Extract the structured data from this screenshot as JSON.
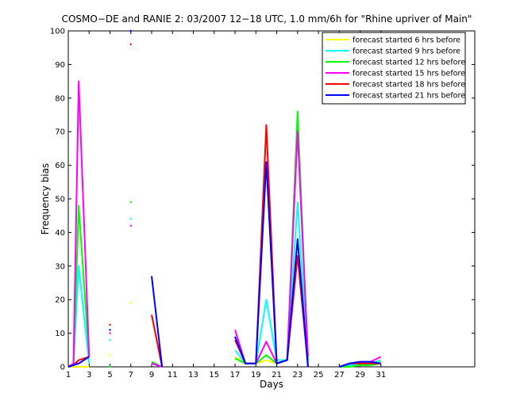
{
  "chart_data": {
    "type": "line",
    "title": "COSMO−DE and RANIE 2: 03/2007 12−18 UTC, 1.0 mm/6h for \"Rhine upriver of Main\"",
    "xlabel": "Days",
    "ylabel": "Frequency bias",
    "xlim": [
      1,
      40
    ],
    "ylim": [
      0,
      100
    ],
    "x_ticks": [
      1,
      3,
      5,
      7,
      9,
      11,
      13,
      15,
      17,
      19,
      21,
      23,
      25,
      27,
      29,
      31
    ],
    "y_ticks": [
      0,
      10,
      20,
      30,
      40,
      50,
      60,
      70,
      80,
      90,
      100
    ],
    "grid": false,
    "legend_position": "top-right",
    "series": [
      {
        "name": "forecast started  6 hrs before",
        "color": "#ffff00",
        "points": [
          [
            1,
            0
          ],
          [
            1.5,
            0
          ],
          [
            2,
            0
          ],
          [
            3,
            0
          ],
          [
            5,
            3.5
          ],
          [
            7,
            19
          ],
          [
            17,
            3
          ],
          [
            18,
            1
          ],
          [
            19,
            1
          ],
          [
            20,
            2
          ],
          [
            21,
            1
          ],
          [
            22,
            2
          ],
          [
            23,
            35
          ],
          [
            24,
            3
          ],
          [
            27,
            0
          ],
          [
            28,
            0.5
          ],
          [
            29,
            1
          ],
          [
            30,
            1
          ],
          [
            31,
            1.5
          ]
        ],
        "gaps_before": [
          4,
          5,
          6
        ],
        "isolated": [
          4,
          5
        ]
      },
      {
        "name": "forecast started  9 hrs before",
        "color": "#00ffff",
        "points": [
          [
            1,
            0
          ],
          [
            1.5,
            1
          ],
          [
            2,
            30
          ],
          [
            3,
            1
          ],
          [
            5,
            8
          ],
          [
            7,
            44
          ],
          [
            9,
            1
          ],
          [
            10,
            0
          ],
          [
            17,
            5
          ],
          [
            18,
            1
          ],
          [
            19,
            1
          ],
          [
            20,
            20
          ],
          [
            21,
            2
          ],
          [
            22,
            2
          ],
          [
            23,
            49
          ],
          [
            24,
            1
          ],
          [
            27,
            0
          ],
          [
            28,
            0.5
          ],
          [
            29,
            1
          ],
          [
            30,
            1
          ],
          [
            31,
            2
          ]
        ],
        "gaps_before": [
          4,
          5,
          6,
          8
        ],
        "isolated": [
          4,
          5
        ]
      },
      {
        "name": "forecast started 12 hrs before",
        "color": "#00ff00",
        "points": [
          [
            1,
            0
          ],
          [
            1.5,
            1
          ],
          [
            2,
            48
          ],
          [
            3,
            3
          ],
          [
            5,
            0
          ],
          [
            7,
            49
          ],
          [
            9,
            1.5
          ],
          [
            10,
            0
          ],
          [
            17,
            2.5
          ],
          [
            18,
            1
          ],
          [
            19,
            1
          ],
          [
            20,
            3.5
          ],
          [
            21,
            1
          ],
          [
            22,
            2
          ],
          [
            23,
            76
          ],
          [
            24,
            2
          ],
          [
            27,
            0
          ],
          [
            28,
            0
          ],
          [
            29,
            0.5
          ],
          [
            30,
            0.5
          ],
          [
            31,
            1
          ]
        ],
        "gaps_before": [
          4,
          5,
          6,
          8
        ],
        "isolated": [
          5
        ]
      },
      {
        "name": "forecast started 15 hrs before",
        "color": "#ff00ff",
        "points": [
          [
            1,
            0
          ],
          [
            1.5,
            1
          ],
          [
            2,
            85
          ],
          [
            3,
            3
          ],
          [
            5,
            10
          ],
          [
            7,
            42
          ],
          [
            9,
            1
          ],
          [
            10,
            0
          ],
          [
            17,
            11
          ],
          [
            18,
            1
          ],
          [
            19,
            1
          ],
          [
            20,
            7.5
          ],
          [
            21,
            1
          ],
          [
            22,
            2
          ],
          [
            23,
            70
          ],
          [
            24,
            3
          ],
          [
            27,
            0
          ],
          [
            28,
            1
          ],
          [
            29,
            1.5
          ],
          [
            30,
            1.5
          ],
          [
            31,
            3
          ]
        ],
        "gaps_before": [
          4,
          5,
          6,
          8
        ],
        "isolated": [
          4,
          5
        ]
      },
      {
        "name": "forecast started 18 hrs before",
        "color": "#ff0000",
        "points": [
          [
            1,
            0
          ],
          [
            1.5,
            0.5
          ],
          [
            2,
            2
          ],
          [
            3,
            3
          ],
          [
            5,
            12.5
          ],
          [
            7,
            96
          ],
          [
            9,
            15.5
          ],
          [
            10,
            0
          ],
          [
            17,
            8
          ],
          [
            18,
            1
          ],
          [
            19,
            1
          ],
          [
            20,
            72
          ],
          [
            21,
            1
          ],
          [
            22,
            2
          ],
          [
            23,
            33
          ],
          [
            24,
            0
          ],
          [
            27,
            0
          ],
          [
            28,
            1
          ],
          [
            29,
            1
          ],
          [
            30,
            1
          ],
          [
            31,
            1
          ]
        ],
        "gaps_before": [
          4,
          5,
          6,
          8
        ],
        "isolated": [
          4,
          5
        ]
      },
      {
        "name": "forecast started 21 hrs before",
        "color": "#0000ff",
        "points": [
          [
            1,
            0
          ],
          [
            1.5,
            0.5
          ],
          [
            2,
            1
          ],
          [
            3,
            3
          ],
          [
            5,
            11
          ],
          [
            7,
            100
          ],
          [
            9,
            27
          ],
          [
            10,
            0
          ],
          [
            17,
            9
          ],
          [
            18,
            1
          ],
          [
            19,
            1
          ],
          [
            20,
            61
          ],
          [
            21,
            1
          ],
          [
            22,
            2
          ],
          [
            23,
            38
          ],
          [
            24,
            0
          ],
          [
            27,
            0
          ],
          [
            28,
            1
          ],
          [
            29,
            1.5
          ],
          [
            30,
            1.5
          ],
          [
            31,
            1
          ]
        ],
        "gaps_before": [
          4,
          5,
          6,
          8
        ],
        "isolated": [
          4,
          5
        ]
      }
    ]
  }
}
